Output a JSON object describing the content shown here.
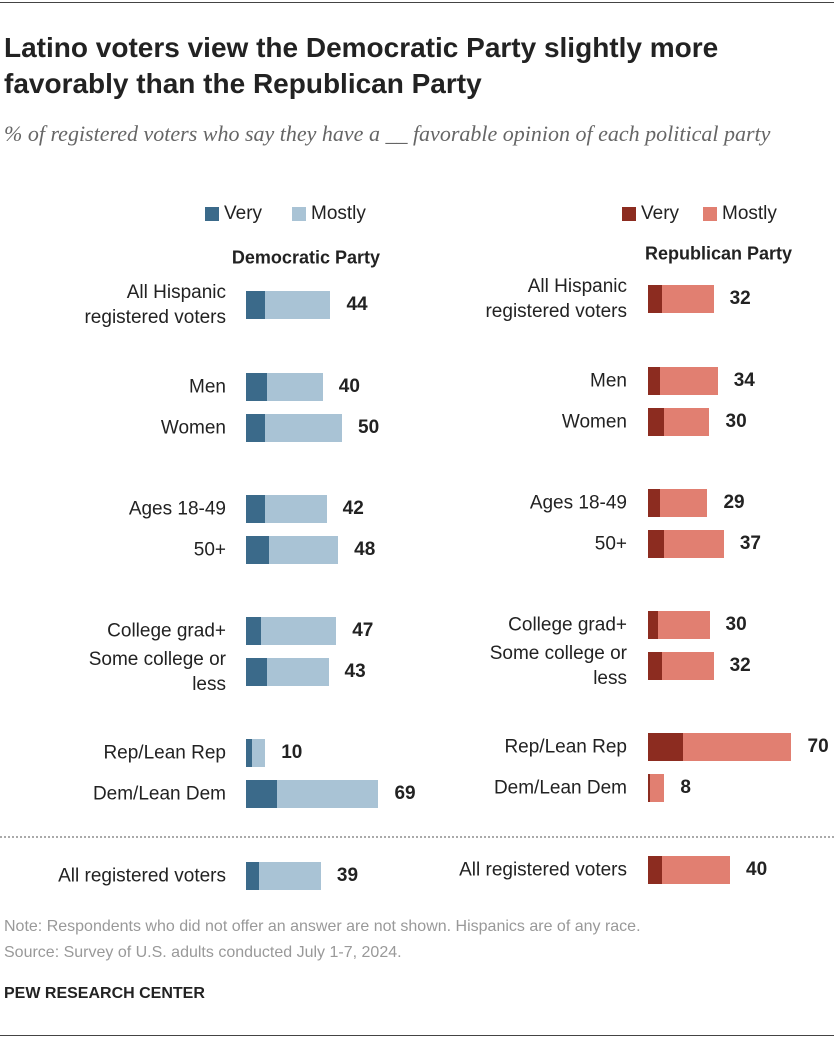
{
  "title": "Latino voters view the Democratic Party slightly more favorably than the Republican Party",
  "subtitle": "% of registered voters who say they have a __ favorable opinion of each political party",
  "note": "Note: Respondents who did not offer an answer are not shown. Hispanics are of any race.",
  "source": "Source: Survey of U.S. adults conducted July 1-7, 2024.",
  "credit": "PEW RESEARCH CENTER",
  "chart_data": [
    {
      "type": "bar",
      "title": "Democratic Party",
      "categories": [
        "All Hispanic registered voters",
        "Men",
        "Women",
        "Ages 18-49",
        "50+",
        "College grad+",
        "Some college or less",
        "Rep/Lean Rep",
        "Dem/Lean Dem",
        "All registered voters"
      ],
      "series": [
        {
          "name": "Very",
          "color": "#3b6a8a",
          "values": [
            10,
            11,
            10,
            10,
            12,
            8,
            11,
            3,
            16,
            7
          ]
        },
        {
          "name": "Mostly",
          "color": "#a9c3d5",
          "values": [
            34,
            29,
            40,
            32,
            36,
            39,
            32,
            7,
            53,
            32
          ]
        }
      ],
      "totals": [
        44,
        40,
        50,
        42,
        48,
        47,
        43,
        10,
        69,
        39
      ]
    },
    {
      "type": "bar",
      "title": "Republican Party",
      "categories": [
        "All Hispanic registered voters",
        "Men",
        "Women",
        "Ages 18-49",
        "50+",
        "College grad+",
        "Some college or less",
        "Rep/Lean Rep",
        "Dem/Lean Dem",
        "All registered voters"
      ],
      "series": [
        {
          "name": "Very",
          "color": "#8c2c20",
          "values": [
            7,
            6,
            8,
            6,
            8,
            5,
            7,
            17,
            1,
            7
          ]
        },
        {
          "name": "Mostly",
          "color": "#e17f71",
          "values": [
            25,
            28,
            22,
            23,
            29,
            25,
            25,
            53,
            7,
            33
          ]
        }
      ],
      "totals": [
        32,
        34,
        30,
        29,
        37,
        30,
        32,
        70,
        8,
        40
      ]
    }
  ]
}
